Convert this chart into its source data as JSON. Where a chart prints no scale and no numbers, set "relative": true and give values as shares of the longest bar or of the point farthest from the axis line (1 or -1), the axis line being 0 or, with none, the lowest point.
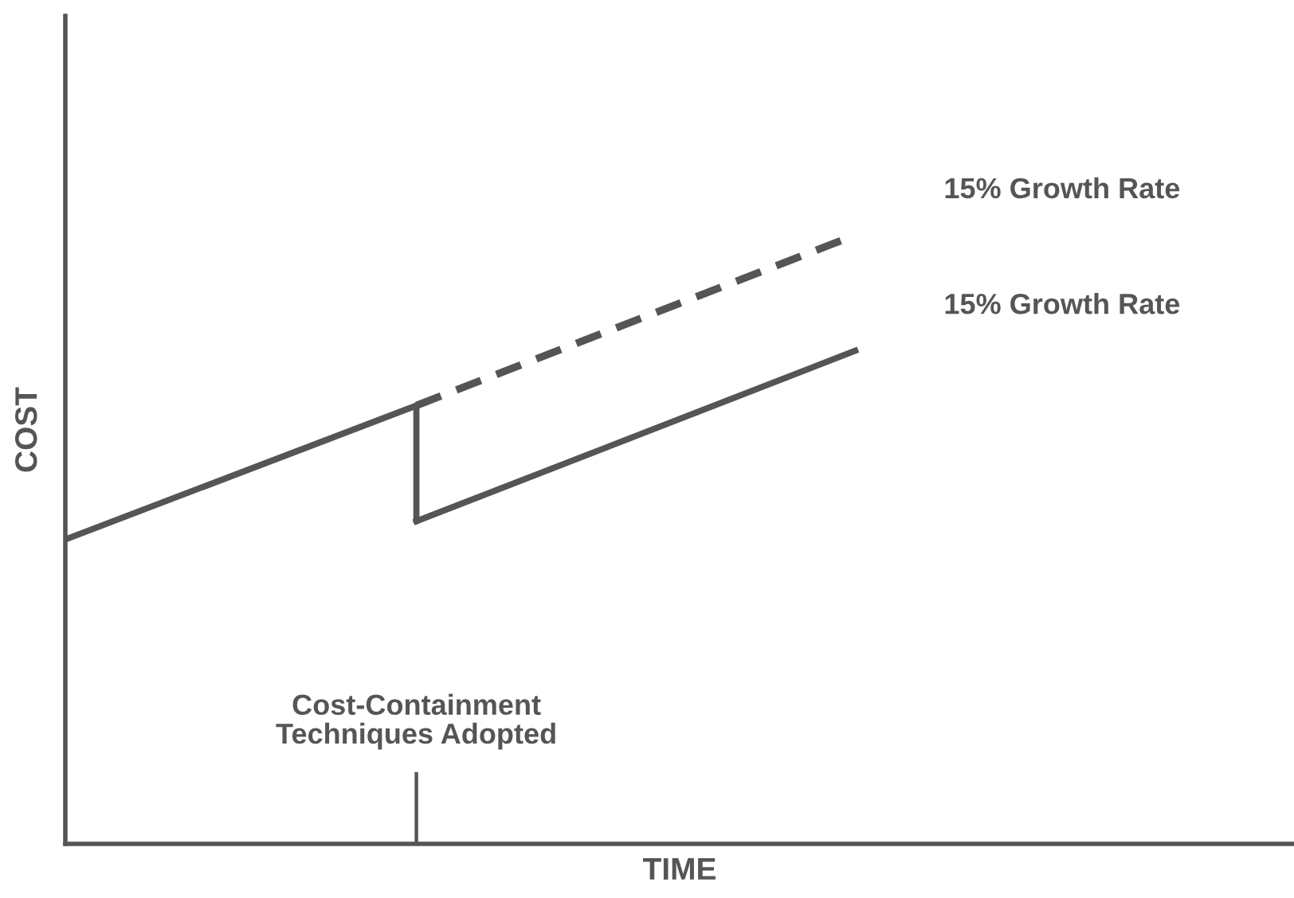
{
  "chart_data": {
    "type": "line",
    "relative": true,
    "xlabel": "TIME",
    "ylabel": "COST",
    "categories": [
      null,
      null,
      null,
      null,
      null,
      null,
      null,
      null,
      null,
      null,
      null,
      null,
      null,
      null,
      null
    ],
    "series": [
      {
        "color": "#555555",
        "values": [
          0.5,
          null,
          null,
          null,
          0.72,
          null,
          null,
          null,
          null,
          null,
          null,
          null,
          null,
          null,
          null
        ],
        "line_style": "solid"
      },
      {
        "color": "#555555",
        "values": [
          null,
          null,
          null,
          null,
          0.53,
          null,
          null,
          null,
          null,
          0.81,
          null,
          null,
          null,
          null,
          null
        ],
        "name": "15% Growth Rate",
        "line_style": "solid"
      },
      {
        "color": "#555555",
        "values": [
          null,
          null,
          null,
          null,
          0.72,
          null,
          null,
          null,
          null,
          1.0,
          null,
          null,
          null,
          null,
          null
        ],
        "name": "15% Growth Rate",
        "line_style": "dashed"
      }
    ],
    "annotations": [
      "Cost-Containment\nTechniques Adopted"
    ],
    "grid": false,
    "legend": false,
    "marker": "none",
    "tick_labels": false
  }
}
